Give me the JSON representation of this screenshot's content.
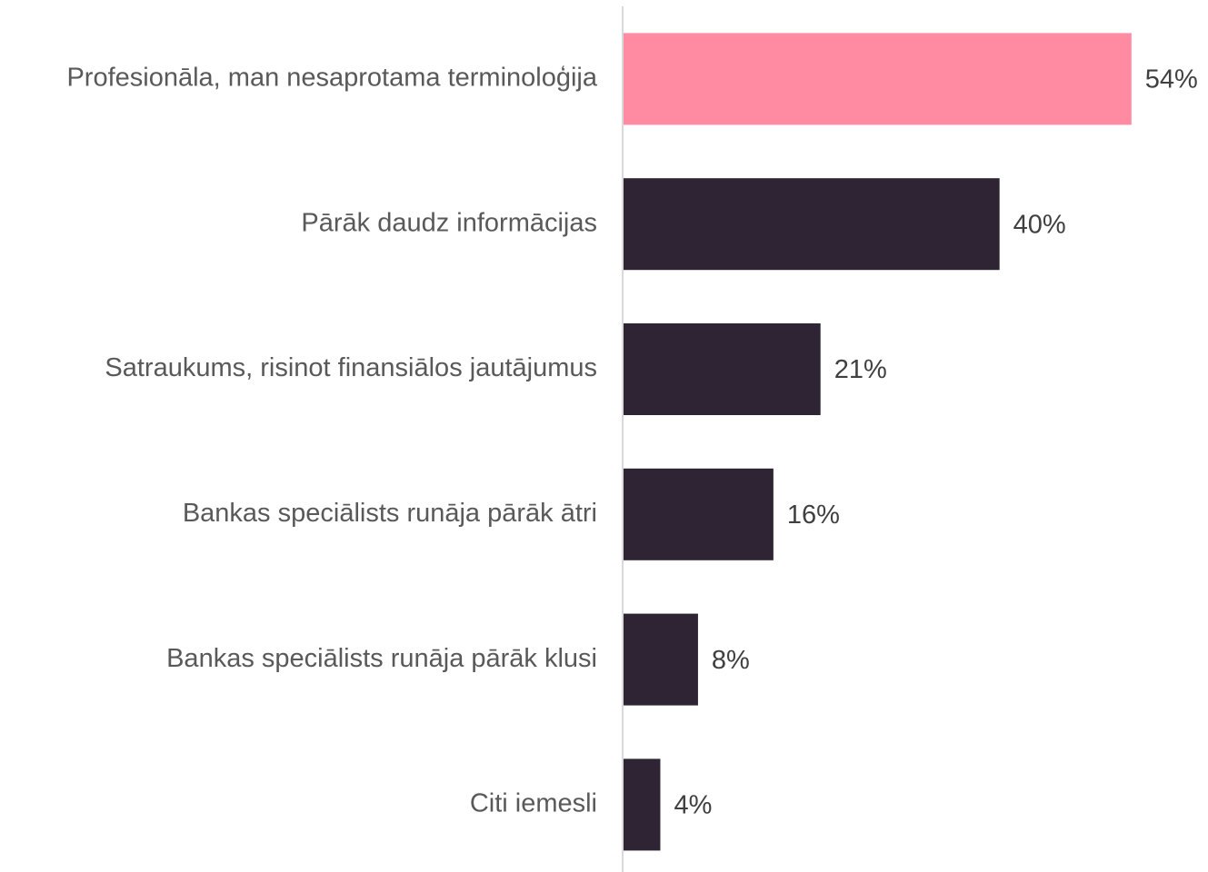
{
  "chart_data": {
    "type": "barh",
    "categories": [
      "Profesionāla, man nesaprotama terminoloģija",
      "Pārāk daudz informācijas",
      "Satraukums, risinot finansiālos jautājumus",
      "Bankas speciālists runāja pārāk ātri",
      "Bankas speciālists runāja pārāk klusi",
      "Citi iemesli"
    ],
    "values": [
      54,
      40,
      21,
      16,
      8,
      4
    ],
    "value_labels": [
      "54%",
      "40%",
      "21%",
      "16%",
      "8%",
      "4%"
    ],
    "colors": [
      "#ff8ba3",
      "#2f2433",
      "#2f2433",
      "#2f2433",
      "#2f2433",
      "#2f2433"
    ],
    "xlim": [
      0,
      60
    ]
  }
}
